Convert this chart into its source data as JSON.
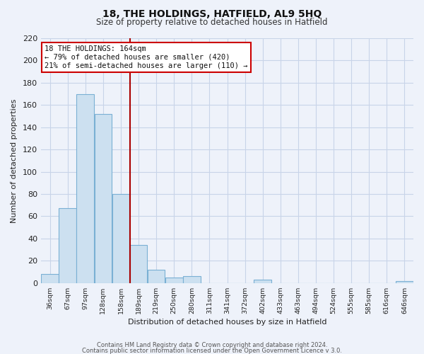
{
  "title": "18, THE HOLDINGS, HATFIELD, AL9 5HQ",
  "subtitle": "Size of property relative to detached houses in Hatfield",
  "xlabel": "Distribution of detached houses by size in Hatfield",
  "ylabel": "Number of detached properties",
  "bar_labels": [
    "36sqm",
    "67sqm",
    "97sqm",
    "128sqm",
    "158sqm",
    "189sqm",
    "219sqm",
    "250sqm",
    "280sqm",
    "311sqm",
    "341sqm",
    "372sqm",
    "402sqm",
    "433sqm",
    "463sqm",
    "494sqm",
    "524sqm",
    "555sqm",
    "585sqm",
    "616sqm",
    "646sqm"
  ],
  "bar_values": [
    8,
    67,
    170,
    152,
    80,
    34,
    12,
    5,
    6,
    0,
    0,
    0,
    3,
    0,
    0,
    0,
    0,
    0,
    0,
    0,
    2
  ],
  "bar_face_color": "#cce0f0",
  "bar_edge_color": "#7ab0d4",
  "vline_index": 4,
  "vline_color": "#aa0000",
  "ylim": [
    0,
    220
  ],
  "yticks": [
    0,
    20,
    40,
    60,
    80,
    100,
    120,
    140,
    160,
    180,
    200,
    220
  ],
  "annotation_title": "18 THE HOLDINGS: 164sqm",
  "annotation_line1": "← 79% of detached houses are smaller (420)",
  "annotation_line2": "21% of semi-detached houses are larger (110) →",
  "annotation_box_color": "#ffffff",
  "annotation_box_edge": "#cc0000",
  "footer1": "Contains HM Land Registry data © Crown copyright and database right 2024.",
  "footer2": "Contains public sector information licensed under the Open Government Licence v 3.0.",
  "grid_color": "#c8d4e8",
  "background_color": "#eef2fa",
  "title_fontsize": 10,
  "subtitle_fontsize": 8.5
}
